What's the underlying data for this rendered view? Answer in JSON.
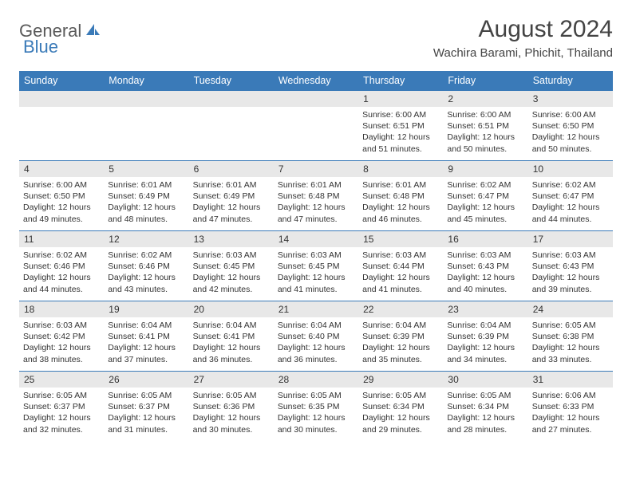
{
  "logo": {
    "text1": "General",
    "text2": "Blue"
  },
  "title": "August 2024",
  "location": "Wachira Barami, Phichit, Thailand",
  "colors": {
    "header_bg": "#3a7ab8",
    "header_text": "#ffffff",
    "daynum_bg": "#e8e8e8",
    "border": "#3a7ab8",
    "logo_gray": "#5a5a5a",
    "logo_blue": "#3a7ab8"
  },
  "weekdays": [
    "Sunday",
    "Monday",
    "Tuesday",
    "Wednesday",
    "Thursday",
    "Friday",
    "Saturday"
  ],
  "weeks": [
    [
      null,
      null,
      null,
      null,
      {
        "n": "1",
        "sunrise": "6:00 AM",
        "sunset": "6:51 PM",
        "daylight": "12 hours and 51 minutes."
      },
      {
        "n": "2",
        "sunrise": "6:00 AM",
        "sunset": "6:51 PM",
        "daylight": "12 hours and 50 minutes."
      },
      {
        "n": "3",
        "sunrise": "6:00 AM",
        "sunset": "6:50 PM",
        "daylight": "12 hours and 50 minutes."
      }
    ],
    [
      {
        "n": "4",
        "sunrise": "6:00 AM",
        "sunset": "6:50 PM",
        "daylight": "12 hours and 49 minutes."
      },
      {
        "n": "5",
        "sunrise": "6:01 AM",
        "sunset": "6:49 PM",
        "daylight": "12 hours and 48 minutes."
      },
      {
        "n": "6",
        "sunrise": "6:01 AM",
        "sunset": "6:49 PM",
        "daylight": "12 hours and 47 minutes."
      },
      {
        "n": "7",
        "sunrise": "6:01 AM",
        "sunset": "6:48 PM",
        "daylight": "12 hours and 47 minutes."
      },
      {
        "n": "8",
        "sunrise": "6:01 AM",
        "sunset": "6:48 PM",
        "daylight": "12 hours and 46 minutes."
      },
      {
        "n": "9",
        "sunrise": "6:02 AM",
        "sunset": "6:47 PM",
        "daylight": "12 hours and 45 minutes."
      },
      {
        "n": "10",
        "sunrise": "6:02 AM",
        "sunset": "6:47 PM",
        "daylight": "12 hours and 44 minutes."
      }
    ],
    [
      {
        "n": "11",
        "sunrise": "6:02 AM",
        "sunset": "6:46 PM",
        "daylight": "12 hours and 44 minutes."
      },
      {
        "n": "12",
        "sunrise": "6:02 AM",
        "sunset": "6:46 PM",
        "daylight": "12 hours and 43 minutes."
      },
      {
        "n": "13",
        "sunrise": "6:03 AM",
        "sunset": "6:45 PM",
        "daylight": "12 hours and 42 minutes."
      },
      {
        "n": "14",
        "sunrise": "6:03 AM",
        "sunset": "6:45 PM",
        "daylight": "12 hours and 41 minutes."
      },
      {
        "n": "15",
        "sunrise": "6:03 AM",
        "sunset": "6:44 PM",
        "daylight": "12 hours and 41 minutes."
      },
      {
        "n": "16",
        "sunrise": "6:03 AM",
        "sunset": "6:43 PM",
        "daylight": "12 hours and 40 minutes."
      },
      {
        "n": "17",
        "sunrise": "6:03 AM",
        "sunset": "6:43 PM",
        "daylight": "12 hours and 39 minutes."
      }
    ],
    [
      {
        "n": "18",
        "sunrise": "6:03 AM",
        "sunset": "6:42 PM",
        "daylight": "12 hours and 38 minutes."
      },
      {
        "n": "19",
        "sunrise": "6:04 AM",
        "sunset": "6:41 PM",
        "daylight": "12 hours and 37 minutes."
      },
      {
        "n": "20",
        "sunrise": "6:04 AM",
        "sunset": "6:41 PM",
        "daylight": "12 hours and 36 minutes."
      },
      {
        "n": "21",
        "sunrise": "6:04 AM",
        "sunset": "6:40 PM",
        "daylight": "12 hours and 36 minutes."
      },
      {
        "n": "22",
        "sunrise": "6:04 AM",
        "sunset": "6:39 PM",
        "daylight": "12 hours and 35 minutes."
      },
      {
        "n": "23",
        "sunrise": "6:04 AM",
        "sunset": "6:39 PM",
        "daylight": "12 hours and 34 minutes."
      },
      {
        "n": "24",
        "sunrise": "6:05 AM",
        "sunset": "6:38 PM",
        "daylight": "12 hours and 33 minutes."
      }
    ],
    [
      {
        "n": "25",
        "sunrise": "6:05 AM",
        "sunset": "6:37 PM",
        "daylight": "12 hours and 32 minutes."
      },
      {
        "n": "26",
        "sunrise": "6:05 AM",
        "sunset": "6:37 PM",
        "daylight": "12 hours and 31 minutes."
      },
      {
        "n": "27",
        "sunrise": "6:05 AM",
        "sunset": "6:36 PM",
        "daylight": "12 hours and 30 minutes."
      },
      {
        "n": "28",
        "sunrise": "6:05 AM",
        "sunset": "6:35 PM",
        "daylight": "12 hours and 30 minutes."
      },
      {
        "n": "29",
        "sunrise": "6:05 AM",
        "sunset": "6:34 PM",
        "daylight": "12 hours and 29 minutes."
      },
      {
        "n": "30",
        "sunrise": "6:05 AM",
        "sunset": "6:34 PM",
        "daylight": "12 hours and 28 minutes."
      },
      {
        "n": "31",
        "sunrise": "6:06 AM",
        "sunset": "6:33 PM",
        "daylight": "12 hours and 27 minutes."
      }
    ]
  ]
}
